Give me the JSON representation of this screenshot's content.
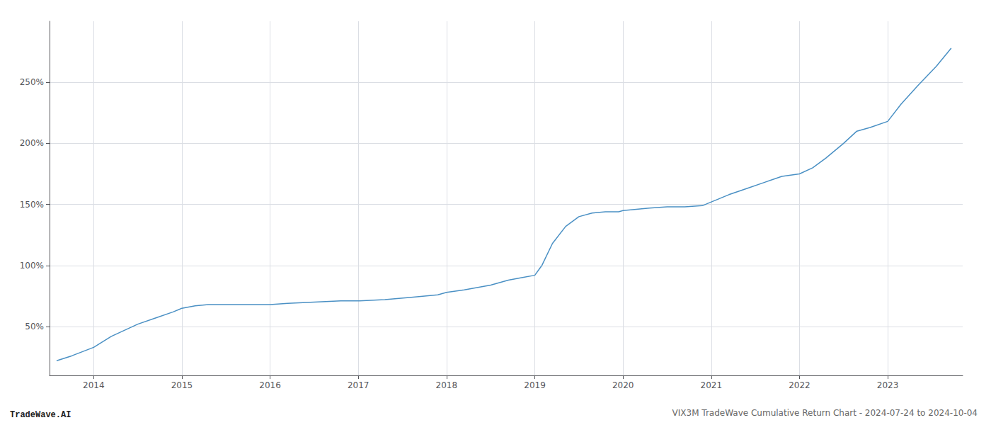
{
  "chart_data": {
    "type": "line",
    "title": "VIX3M TradeWave Cumulative Return Chart - 2024-07-24 to 2024-10-04",
    "annotations": [
      "TradeWave.AI"
    ],
    "color": "#4a90c4",
    "x": [
      2013.58,
      2013.75,
      2014.0,
      2014.2,
      2014.5,
      2014.7,
      2014.9,
      2015.0,
      2015.15,
      2015.3,
      2015.5,
      2015.7,
      2015.9,
      2016.0,
      2016.2,
      2016.5,
      2016.8,
      2017.0,
      2017.3,
      2017.6,
      2017.9,
      2018.0,
      2018.2,
      2018.5,
      2018.7,
      2018.85,
      2019.0,
      2019.08,
      2019.2,
      2019.35,
      2019.5,
      2019.65,
      2019.8,
      2019.95,
      2020.0,
      2020.15,
      2020.3,
      2020.5,
      2020.7,
      2020.9,
      2021.0,
      2021.2,
      2021.4,
      2021.6,
      2021.8,
      2022.0,
      2022.15,
      2022.3,
      2022.5,
      2022.65,
      2022.8,
      2023.0,
      2023.15,
      2023.35,
      2023.55,
      2023.72
    ],
    "values": [
      22,
      26,
      33,
      42,
      52,
      57,
      62,
      65,
      67,
      68,
      68,
      68,
      68,
      68,
      69,
      70,
      71,
      71,
      72,
      74,
      76,
      78,
      80,
      84,
      88,
      90,
      92,
      100,
      118,
      132,
      140,
      143,
      144,
      144,
      145,
      146,
      147,
      148,
      148,
      149,
      152,
      158,
      163,
      168,
      173,
      175,
      180,
      188,
      200,
      210,
      213,
      218,
      232,
      248,
      263,
      278
    ],
    "xlim": [
      2013.5,
      2023.85
    ],
    "xticks": [
      2014,
      2015,
      2016,
      2017,
      2018,
      2019,
      2020,
      2021,
      2022,
      2023
    ],
    "ylim": [
      10,
      300
    ],
    "yticks": [
      {
        "value": 50,
        "label": "50%"
      },
      {
        "value": 100,
        "label": "100%"
      },
      {
        "value": 150,
        "label": "150%"
      },
      {
        "value": 200,
        "label": "200%"
      },
      {
        "value": 250,
        "label": "250%"
      }
    ],
    "grid": true
  }
}
